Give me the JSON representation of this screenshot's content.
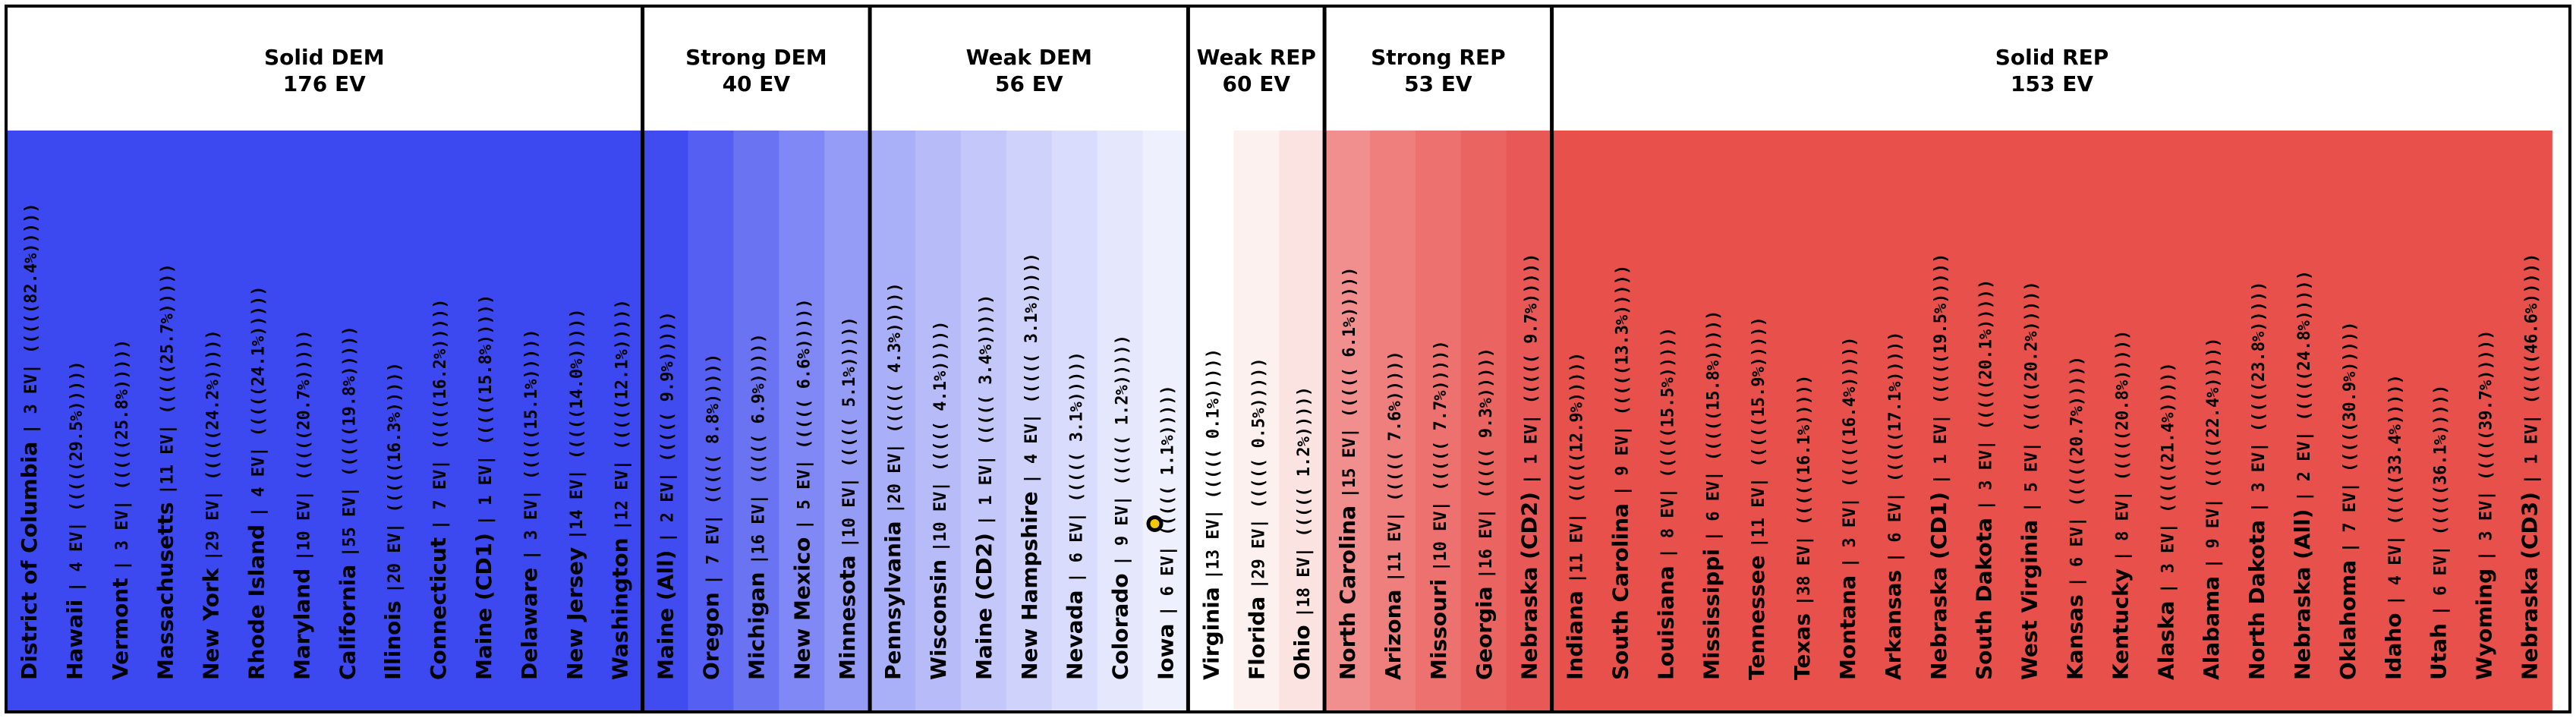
{
  "chart_data": {
    "type": "bar",
    "groups": [
      {
        "name": "Solid DEM",
        "ev_label": "176 EV",
        "states": [
          {
            "name": "District of Columbia",
            "ev": 3,
            "margin": "(82.4%)"
          },
          {
            "name": "Hawaii",
            "ev": 4,
            "margin": "(29.5%)"
          },
          {
            "name": "Vermont",
            "ev": 3,
            "margin": "(25.8%)"
          },
          {
            "name": "Massachusetts",
            "ev": 11,
            "margin": "(25.7%)"
          },
          {
            "name": "New York",
            "ev": 29,
            "margin": "(24.2%)"
          },
          {
            "name": "Rhode Island",
            "ev": 4,
            "margin": "(24.1%)"
          },
          {
            "name": "Maryland",
            "ev": 10,
            "margin": "(20.7%)"
          },
          {
            "name": "California",
            "ev": 55,
            "margin": "(19.8%)"
          },
          {
            "name": "Illinois",
            "ev": 20,
            "margin": "(16.3%)"
          },
          {
            "name": "Connecticut",
            "ev": 7,
            "margin": "(16.2%)"
          },
          {
            "name": "Maine (CD1)",
            "ev": 1,
            "margin": "(15.8%)"
          },
          {
            "name": "Delaware",
            "ev": 3,
            "margin": "(15.1%)"
          },
          {
            "name": "New Jersey",
            "ev": 14,
            "margin": "(14.0%)"
          },
          {
            "name": "Washington",
            "ev": 12,
            "margin": "(12.1%)"
          }
        ]
      },
      {
        "name": "Strong DEM",
        "ev_label": "40 EV",
        "states": [
          {
            "name": "Maine (All)",
            "ev": 2,
            "margin": "( 9.9%)"
          },
          {
            "name": "Oregon",
            "ev": 7,
            "margin": "( 8.8%)"
          },
          {
            "name": "Michigan",
            "ev": 16,
            "margin": "( 6.9%)"
          },
          {
            "name": "New Mexico",
            "ev": 5,
            "margin": "( 6.6%)"
          },
          {
            "name": "Minnesota",
            "ev": 10,
            "margin": "( 5.1%)"
          }
        ]
      },
      {
        "name": "Weak DEM",
        "ev_label": "56 EV",
        "states": [
          {
            "name": "Pennsylvania",
            "ev": 20,
            "margin": "( 4.3%)"
          },
          {
            "name": "Wisconsin",
            "ev": 10,
            "margin": "( 4.1%)"
          },
          {
            "name": "Maine (CD2)",
            "ev": 1,
            "margin": "( 3.4%)"
          },
          {
            "name": "New Hampshire",
            "ev": 4,
            "margin": "( 3.1%)"
          },
          {
            "name": "Nevada",
            "ev": 6,
            "margin": "( 3.1%)"
          },
          {
            "name": "Colorado",
            "ev": 9,
            "margin": "( 1.2%)"
          },
          {
            "name": "Iowa",
            "ev": 6,
            "margin": "( 1.1%)",
            "marker": true
          }
        ]
      },
      {
        "name": "Weak REP",
        "ev_label": "60 EV",
        "states": [
          {
            "name": "Virginia",
            "ev": 13,
            "margin": "( 0.1%)"
          },
          {
            "name": "Florida",
            "ev": 29,
            "margin": "( 0.5%)"
          },
          {
            "name": "Ohio",
            "ev": 18,
            "margin": "( 1.2%)"
          }
        ]
      },
      {
        "name": "Strong REP",
        "ev_label": "53 EV",
        "states": [
          {
            "name": "North Carolina",
            "ev": 15,
            "margin": "( 6.1%)"
          },
          {
            "name": "Arizona",
            "ev": 11,
            "margin": "( 7.6%)"
          },
          {
            "name": "Missouri",
            "ev": 10,
            "margin": "( 7.7%)"
          },
          {
            "name": "Georgia",
            "ev": 16,
            "margin": "( 9.3%)"
          },
          {
            "name": "Nebraska (CD2)",
            "ev": 1,
            "margin": "( 9.7%)"
          }
        ]
      },
      {
        "name": "Solid REP",
        "ev_label": "153 EV",
        "states": [
          {
            "name": "Indiana",
            "ev": 11,
            "margin": "(12.9%)"
          },
          {
            "name": "South Carolina",
            "ev": 9,
            "margin": "(13.3%)"
          },
          {
            "name": "Louisiana",
            "ev": 8,
            "margin": "(15.5%)"
          },
          {
            "name": "Mississippi",
            "ev": 6,
            "margin": "(15.8%)"
          },
          {
            "name": "Tennessee",
            "ev": 11,
            "margin": "(15.9%)"
          },
          {
            "name": "Texas",
            "ev": 38,
            "margin": "(16.1%)"
          },
          {
            "name": "Montana",
            "ev": 3,
            "margin": "(16.4%)"
          },
          {
            "name": "Arkansas",
            "ev": 6,
            "margin": "(17.1%)"
          },
          {
            "name": "Nebraska (CD1)",
            "ev": 1,
            "margin": "(19.5%)"
          },
          {
            "name": "South Dakota",
            "ev": 3,
            "margin": "(20.1%)"
          },
          {
            "name": "West Virginia",
            "ev": 5,
            "margin": "(20.2%)"
          },
          {
            "name": "Kansas",
            "ev": 6,
            "margin": "(20.7%)"
          },
          {
            "name": "Kentucky",
            "ev": 8,
            "margin": "(20.8%)"
          },
          {
            "name": "Alaska",
            "ev": 3,
            "margin": "(21.4%)"
          },
          {
            "name": "Alabama",
            "ev": 9,
            "margin": "(22.4%)"
          },
          {
            "name": "North Dakota",
            "ev": 3,
            "margin": "(23.8%)"
          },
          {
            "name": "Nebraska (All)",
            "ev": 2,
            "margin": "(24.8%)"
          },
          {
            "name": "Oklahoma",
            "ev": 7,
            "margin": "(30.9%)"
          },
          {
            "name": "Idaho",
            "ev": 4,
            "margin": "(33.4%)"
          },
          {
            "name": "Utah",
            "ev": 6,
            "margin": "(36.1%)"
          },
          {
            "name": "Wyoming",
            "ev": 3,
            "margin": "(39.7%)"
          },
          {
            "name": "Nebraska (CD3)",
            "ev": 1,
            "margin": "(46.6%)"
          }
        ]
      }
    ],
    "colors": {
      "dem_solid": "#3c48f0",
      "dem_strong": [
        "#404cf0",
        "#5560f2",
        "#6a74f3",
        "#7f88f5",
        "#959cf6"
      ],
      "dem_weak": [
        "#aab0f8",
        "#b7bcf9",
        "#c3c7fa",
        "#cfd2fb",
        "#d9dcfc",
        "#e5e7fd",
        "#eff0fe"
      ],
      "rep_weak": [
        "#ffffff",
        "#fdf1f0",
        "#fbe3e2"
      ],
      "rep_strong": [
        "#f08f8d",
        "#ee7f7d",
        "#ec716f",
        "#ea6462",
        "#e85856"
      ],
      "rep_solid": "#e8504c"
    }
  }
}
